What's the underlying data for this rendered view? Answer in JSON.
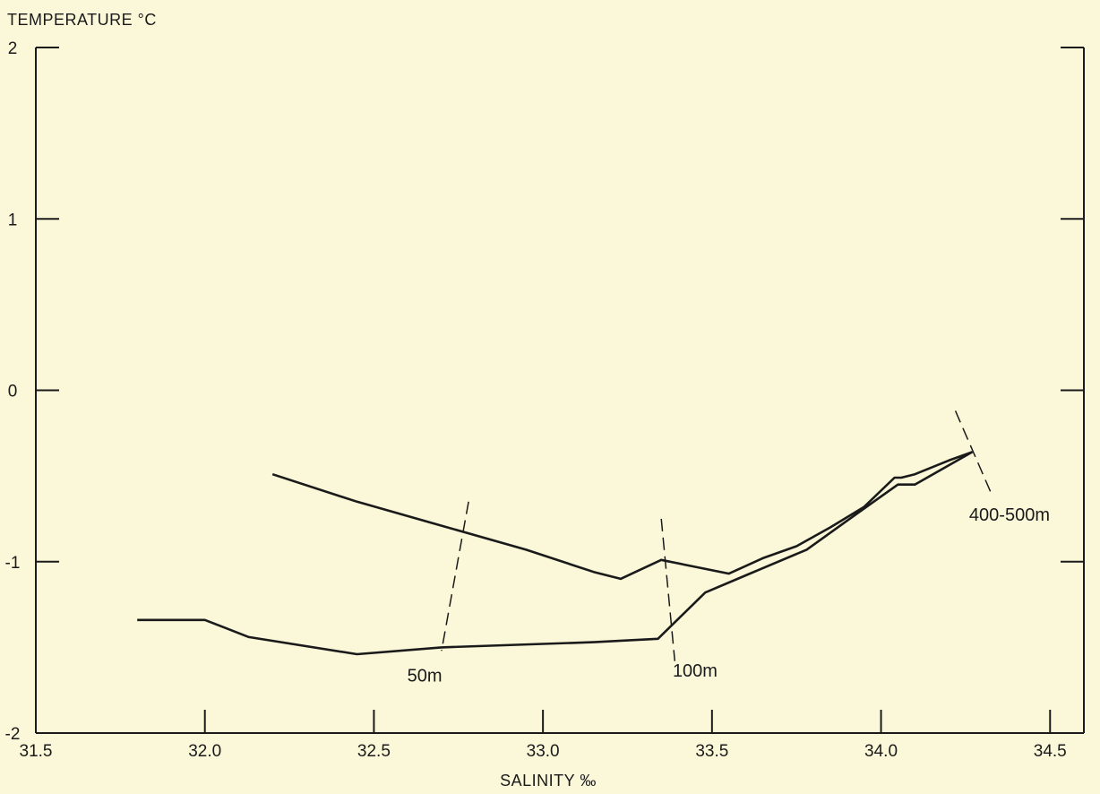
{
  "chart_data": {
    "type": "line",
    "ylabel": "TEMPERATURE °C",
    "xlabel": "SALINITY ‰",
    "xlim": [
      31.5,
      34.6
    ],
    "ylim": [
      -2,
      2
    ],
    "x_ticks": [
      31.5,
      32.0,
      32.5,
      33.0,
      33.5,
      34.0,
      34.5
    ],
    "x_tick_labels": [
      "31.5",
      "32.0",
      "32.5",
      "33.0",
      "33.5",
      "34.0",
      "34.5"
    ],
    "y_ticks": [
      2,
      1,
      0,
      -1,
      -2
    ],
    "y_tick_labels": [
      "2",
      "1",
      "0",
      "-1",
      "-2"
    ],
    "grid": false,
    "series": [
      {
        "x": [
          32.2,
          32.45,
          32.7,
          32.95,
          33.15,
          33.23,
          33.35,
          33.45,
          33.55,
          33.65,
          33.75,
          33.85,
          33.95,
          34.04,
          34.06,
          34.1,
          34.2,
          34.27
        ],
        "y": [
          -0.49,
          -0.65,
          -0.79,
          -0.93,
          -1.06,
          -1.1,
          -0.99,
          -1.03,
          -1.07,
          -0.98,
          -0.91,
          -0.8,
          -0.68,
          -0.51,
          -0.51,
          -0.49,
          -0.41,
          -0.36
        ],
        "color": "#1a1a1a"
      },
      {
        "x": [
          31.8,
          32.0,
          32.13,
          32.45,
          32.7,
          33.0,
          33.15,
          33.34,
          33.48,
          33.6,
          33.78,
          33.9,
          34.0,
          34.05,
          34.1,
          34.27
        ],
        "y": [
          -1.34,
          -1.34,
          -1.44,
          -1.54,
          -1.5,
          -1.48,
          -1.47,
          -1.45,
          -1.18,
          -1.08,
          -0.93,
          -0.76,
          -0.62,
          -0.55,
          -0.55,
          -0.36
        ],
        "color": "#1a1a1a"
      }
    ],
    "depth_marks": [
      {
        "label": "50m",
        "x1": 32.78,
        "y1": -0.65,
        "x2": 32.7,
        "y2": -1.52,
        "label_x": 32.65,
        "label_y": -1.7
      },
      {
        "label": "100m",
        "x1": 33.35,
        "y1": -0.75,
        "x2": 33.39,
        "y2": -1.58,
        "label_x": 33.45,
        "label_y": -1.67
      },
      {
        "label": "400-500m",
        "x1": 34.22,
        "y1": -0.12,
        "x2": 34.33,
        "y2": -0.62,
        "label_x": 34.38,
        "label_y": -0.76
      }
    ]
  }
}
